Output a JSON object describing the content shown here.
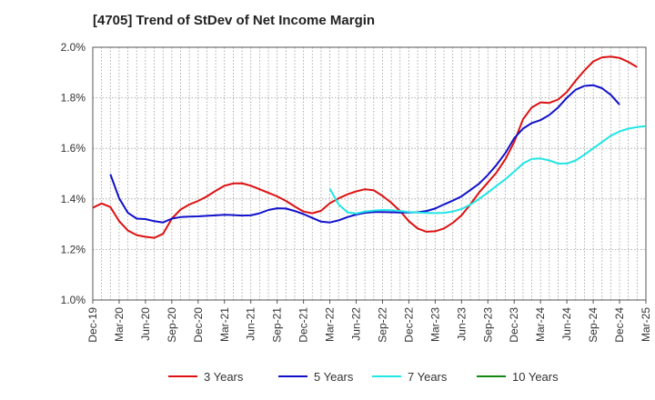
{
  "title": "[4705]  Trend of StDev of Net Income Margin",
  "chart_data": {
    "type": "line",
    "title": "[4705]  Trend of StDev of Net Income Margin",
    "xlabel": "",
    "ylabel": "",
    "x_tick_labels": [
      "Dec-19",
      "Mar-20",
      "Jun-20",
      "Sep-20",
      "Dec-20",
      "Mar-21",
      "Jun-21",
      "Sep-21",
      "Dec-21",
      "Mar-22",
      "Jun-22",
      "Sep-22",
      "Dec-22",
      "Mar-23",
      "Jun-23",
      "Sep-23",
      "Dec-23",
      "Mar-24",
      "Jun-24",
      "Sep-24",
      "Dec-24",
      "Mar-25"
    ],
    "y_tick_labels": [
      "1.0%",
      "1.2%",
      "1.4%",
      "1.6%",
      "1.8%",
      "2.0%"
    ],
    "ylim": [
      1.0,
      2.0
    ],
    "grid": true,
    "legend_position": "bottom",
    "series": [
      {
        "name": "3 Years",
        "color": "#dd1111",
        "start_index": 0,
        "values": [
          1.365,
          1.382,
          1.368,
          1.312,
          1.275,
          1.257,
          1.25,
          1.246,
          1.262,
          1.322,
          1.358,
          1.378,
          1.392,
          1.41,
          1.432,
          1.452,
          1.461,
          1.462,
          1.452,
          1.438,
          1.424,
          1.41,
          1.392,
          1.37,
          1.35,
          1.343,
          1.353,
          1.383,
          1.402,
          1.418,
          1.43,
          1.438,
          1.434,
          1.412,
          1.385,
          1.352,
          1.312,
          1.283,
          1.27,
          1.272,
          1.283,
          1.305,
          1.335,
          1.378,
          1.425,
          1.465,
          1.505,
          1.558,
          1.625,
          1.715,
          1.762,
          1.782,
          1.78,
          1.793,
          1.823,
          1.868,
          1.908,
          1.944,
          1.96,
          1.963,
          1.958,
          1.942,
          1.922
        ]
      },
      {
        "name": "5 Years",
        "color": "#1111cc",
        "start_index": 2,
        "values": [
          1.498,
          1.402,
          1.345,
          1.322,
          1.32,
          1.312,
          1.307,
          1.322,
          1.328,
          1.33,
          1.331,
          1.333,
          1.335,
          1.337,
          1.336,
          1.334,
          1.335,
          1.343,
          1.356,
          1.363,
          1.362,
          1.352,
          1.34,
          1.325,
          1.31,
          1.307,
          1.315,
          1.328,
          1.338,
          1.345,
          1.348,
          1.348,
          1.347,
          1.346,
          1.346,
          1.347,
          1.352,
          1.362,
          1.378,
          1.393,
          1.41,
          1.435,
          1.46,
          1.495,
          1.535,
          1.582,
          1.64,
          1.678,
          1.7,
          1.712,
          1.732,
          1.762,
          1.8,
          1.832,
          1.847,
          1.85,
          1.838,
          1.812,
          1.773
        ]
      },
      {
        "name": "7 Years",
        "color": "#22e5e5",
        "start_index": 27,
        "values": [
          1.44,
          1.378,
          1.347,
          1.342,
          1.35,
          1.354,
          1.356,
          1.355,
          1.352,
          1.348,
          1.346,
          1.345,
          1.344,
          1.345,
          1.35,
          1.36,
          1.377,
          1.4,
          1.425,
          1.452,
          1.478,
          1.508,
          1.54,
          1.558,
          1.56,
          1.552,
          1.54,
          1.54,
          1.552,
          1.575,
          1.6,
          1.625,
          1.65,
          1.667,
          1.678,
          1.684,
          1.688
        ]
      },
      {
        "name": "10 Years",
        "color": "#118811",
        "start_index": 0,
        "values": []
      }
    ]
  }
}
